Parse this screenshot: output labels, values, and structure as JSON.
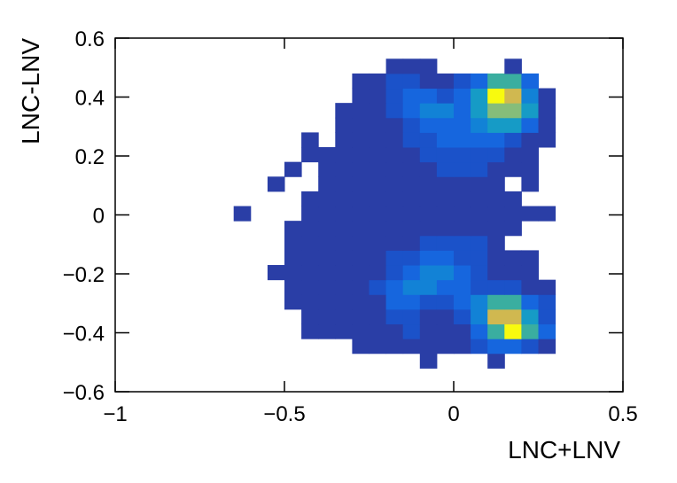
{
  "chart_data": {
    "type": "heatmap",
    "xlabel": "LNC+LNV",
    "ylabel": "LNC-LNV",
    "xlim": [
      -1,
      0.5
    ],
    "ylim": [
      -0.6,
      0.6
    ],
    "xticks": [
      {
        "value": -1,
        "label": "−1"
      },
      {
        "value": -0.5,
        "label": "−0.5"
      },
      0,
      0.5
    ],
    "yticks": [
      {
        "value": -0.6,
        "label": "−0.6"
      },
      {
        "value": -0.4,
        "label": "−0.4"
      },
      {
        "value": -0.2,
        "label": "−0.2"
      },
      0,
      0.2,
      0.4,
      0.6
    ],
    "xbins": [
      -0.65,
      -0.6,
      -0.55,
      -0.5,
      -0.45,
      -0.4,
      -0.35,
      -0.3,
      -0.25,
      -0.2,
      -0.15,
      -0.1,
      -0.05,
      0,
      0.05,
      0.1,
      0.15,
      0.2,
      0.25,
      0.3
    ],
    "ybins": [
      -0.52,
      -0.47,
      -0.42,
      -0.37,
      -0.32,
      -0.27,
      -0.22,
      -0.17,
      -0.12,
      -0.07,
      -0.02,
      0.03,
      0.08,
      0.13,
      0.18,
      0.23,
      0.28,
      0.33,
      0.38,
      0.43,
      0.48,
      0.53
    ],
    "palette": [
      "#2a3ea6",
      "#1b52c9",
      "#1666de",
      "#1282d6",
      "#169bc6",
      "#3aaea0",
      "#86bd7a",
      "#d0b850",
      "#f8fa0e"
    ],
    "z": [
      [
        null,
        null,
        null,
        null,
        null,
        null,
        null,
        null,
        null,
        null,
        null,
        1,
        null,
        null,
        null,
        1,
        null,
        null,
        null
      ],
      [
        null,
        null,
        null,
        null,
        null,
        null,
        null,
        1,
        1,
        1,
        1,
        1,
        1,
        1,
        2,
        3,
        3,
        2,
        1
      ],
      [
        null,
        null,
        null,
        null,
        1,
        1,
        1,
        1,
        1,
        1,
        2,
        1,
        1,
        1,
        3,
        6,
        9,
        6,
        3
      ],
      [
        null,
        null,
        null,
        null,
        1,
        1,
        1,
        1,
        1,
        2,
        2,
        1,
        1,
        2,
        4,
        8,
        8,
        5,
        2
      ],
      [
        null,
        null,
        null,
        1,
        1,
        1,
        1,
        1,
        1,
        3,
        3,
        2,
        2,
        3,
        4,
        6,
        6,
        3,
        2
      ],
      [
        null,
        null,
        null,
        1,
        1,
        1,
        1,
        1,
        2,
        3,
        4,
        4,
        3,
        3,
        2,
        2,
        2,
        1,
        1
      ],
      [
        null,
        null,
        1,
        1,
        1,
        1,
        1,
        1,
        1,
        2,
        3,
        4,
        4,
        3,
        2,
        1,
        1,
        1,
        null
      ],
      [
        null,
        null,
        null,
        1,
        1,
        1,
        1,
        1,
        1,
        2,
        2,
        3,
        3,
        2,
        2,
        1,
        1,
        1,
        null
      ],
      [
        null,
        null,
        null,
        1,
        1,
        1,
        1,
        1,
        1,
        1,
        1,
        2,
        2,
        2,
        2,
        1,
        null,
        null,
        null
      ],
      [
        null,
        null,
        null,
        1,
        1,
        1,
        1,
        1,
        1,
        1,
        1,
        1,
        1,
        1,
        1,
        1,
        1,
        null,
        null
      ],
      [
        1,
        null,
        null,
        null,
        1,
        1,
        1,
        1,
        1,
        1,
        1,
        1,
        1,
        1,
        1,
        1,
        1,
        1,
        1
      ],
      [
        null,
        null,
        null,
        null,
        1,
        1,
        1,
        1,
        1,
        1,
        1,
        1,
        1,
        1,
        1,
        1,
        1,
        null,
        null
      ],
      [
        null,
        null,
        1,
        null,
        null,
        1,
        1,
        1,
        1,
        1,
        1,
        1,
        1,
        1,
        1,
        1,
        null,
        1,
        null
      ],
      [
        null,
        null,
        null,
        1,
        null,
        1,
        1,
        1,
        1,
        1,
        1,
        1,
        2,
        2,
        2,
        1,
        1,
        1,
        null
      ],
      [
        null,
        null,
        null,
        null,
        1,
        1,
        1,
        1,
        1,
        1,
        1,
        2,
        2,
        2,
        2,
        2,
        1,
        1,
        null
      ],
      [
        null,
        null,
        null,
        null,
        1,
        null,
        1,
        1,
        1,
        1,
        2,
        2,
        3,
        3,
        3,
        3,
        2,
        1,
        1
      ],
      [
        null,
        null,
        null,
        null,
        null,
        null,
        1,
        1,
        1,
        1,
        2,
        3,
        3,
        3,
        4,
        5,
        5,
        3,
        1
      ],
      [
        null,
        null,
        null,
        null,
        null,
        null,
        1,
        1,
        1,
        2,
        3,
        4,
        4,
        3,
        5,
        7,
        7,
        5,
        1
      ],
      [
        null,
        null,
        null,
        null,
        null,
        null,
        null,
        1,
        1,
        2,
        3,
        3,
        2,
        3,
        5,
        9,
        8,
        4,
        1
      ],
      [
        null,
        null,
        null,
        null,
        null,
        null,
        null,
        1,
        1,
        2,
        2,
        1,
        1,
        2,
        3,
        6,
        6,
        3,
        null
      ],
      [
        null,
        null,
        null,
        null,
        null,
        null,
        null,
        null,
        null,
        1,
        1,
        1,
        null,
        null,
        null,
        null,
        1,
        null,
        null
      ]
    ]
  }
}
